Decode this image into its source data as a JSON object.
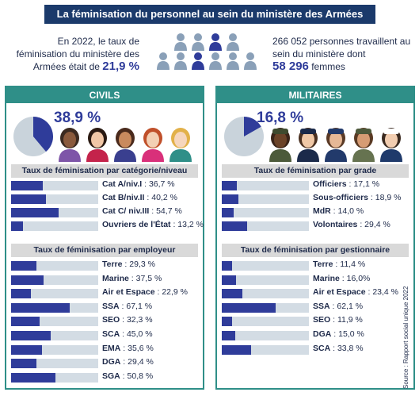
{
  "title": "La féminisation du personnel au sein du ministère des Armées",
  "intro_left": {
    "text": "En 2022, le taux de féminisation du ministère des Armées était de",
    "value": "21,9 %"
  },
  "intro_right": {
    "text": "266 052 personnes travaillent au sein du ministère dont",
    "value": "58 296",
    "suffix": " femmes"
  },
  "civils": {
    "header": "CIVILS",
    "pct": "38,9 %",
    "pct_value": 38.9,
    "section1_title": "Taux de féminisation par catégorie/niveau",
    "section1": [
      {
        "name": "Cat A/niv.I",
        "value_text": "36,7 %",
        "value": 36.7
      },
      {
        "name": "Cat B/niv.II",
        "value_text": "40,2 %",
        "value": 40.2
      },
      {
        "name": "Cat C/ niv.III",
        "value_text": "54,7 %",
        "value": 54.7
      },
      {
        "name": "Ouvriers de l'État",
        "value_text": "13,2 %",
        "value": 13.2
      }
    ],
    "section2_title": "Taux de féminisation par employeur",
    "section2": [
      {
        "name": "Terre",
        "value_text": "29,3 %",
        "value": 29.3
      },
      {
        "name": "Marine",
        "value_text": "37,5 %",
        "value": 37.5
      },
      {
        "name": "Air et Espace",
        "value_text": "22,9 %",
        "value": 22.9
      },
      {
        "name": "SSA",
        "value_text": "67,1 %",
        "value": 67.1
      },
      {
        "name": "SEO",
        "value_text": "32,3 %",
        "value": 32.3
      },
      {
        "name": "SCA",
        "value_text": "45,0 %",
        "value": 45.0
      },
      {
        "name": "EMA",
        "value_text": "35,6 %",
        "value": 35.6
      },
      {
        "name": "DGA",
        "value_text": "29,4 %",
        "value": 29.4
      },
      {
        "name": "SGA",
        "value_text": "50,8 %",
        "value": 50.8
      }
    ]
  },
  "militaires": {
    "header": "MILITAIRES",
    "pct": "16,8 %",
    "pct_value": 16.8,
    "section1_title": "Taux de féminisation par grade",
    "section1": [
      {
        "name": "Officiers",
        "value_text": "17,1 %",
        "value": 17.1
      },
      {
        "name": "Sous-officiers",
        "value_text": "18,9 %",
        "value": 18.9
      },
      {
        "name": "MdR",
        "value_text": "14,0 %",
        "value": 14.0
      },
      {
        "name": "Volontaires",
        "value_text": "29,4 %",
        "value": 29.4
      }
    ],
    "section2_title": "Taux de féminisation par gestionnaire",
    "section2": [
      {
        "name": "Terre",
        "value_text": "11,4 %",
        "value": 11.4
      },
      {
        "name": "Marine",
        "value_text": "16,0%",
        "value": 16.0
      },
      {
        "name": "Air et Espace",
        "value_text": "23,4 %",
        "value": 23.4
      },
      {
        "name": "SSA",
        "value_text": "62,1 %",
        "value": 62.1
      },
      {
        "name": "SEO",
        "value_text": "11,9 %",
        "value": 11.9
      },
      {
        "name": "DGA",
        "value_text": "15,0 %",
        "value": 15.0
      },
      {
        "name": "SCA",
        "value_text": "33,8 %",
        "value": 33.8
      }
    ]
  },
  "source": "Source : Rapport social unique 2022",
  "colors": {
    "navy": "#1b3a6b",
    "accent": "#2f3c9a",
    "teal": "#2f8f88",
    "track": "#d3dce4",
    "grey": "#c9d3db"
  }
}
